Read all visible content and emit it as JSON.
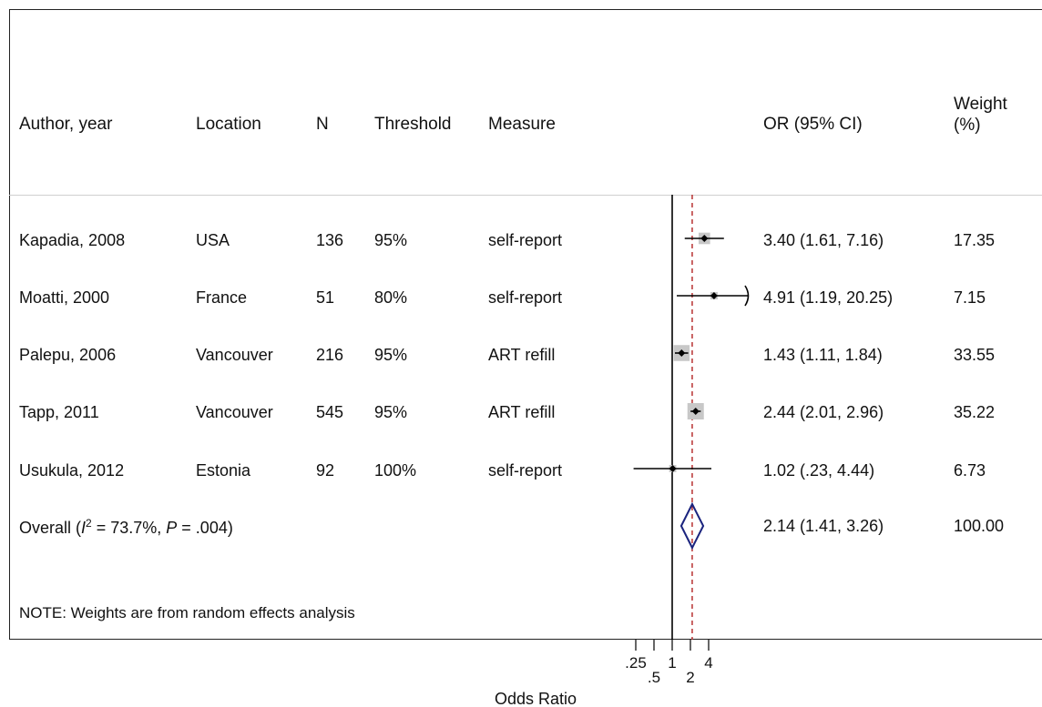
{
  "columns": {
    "author": "Author, year",
    "location": "Location",
    "n": "N",
    "threshold": "Threshold",
    "measure": "Measure",
    "or_ci": "OR (95% CI)",
    "weight_line1": "Weight",
    "weight_line2": "(%)"
  },
  "studies": [
    {
      "author": "Kapadia, 2008",
      "location": "USA",
      "n": "136",
      "threshold": "95%",
      "measure": "self-report",
      "or_ci": "3.40 (1.61, 7.16)",
      "weight": "17.35"
    },
    {
      "author": "Moatti, 2000",
      "location": "France",
      "n": "51",
      "threshold": "80%",
      "measure": "self-report",
      "or_ci": "4.91 (1.19, 20.25)",
      "weight": "7.15"
    },
    {
      "author": "Palepu, 2006",
      "location": "Vancouver",
      "n": "216",
      "threshold": "95%",
      "measure": "ART refill",
      "or_ci": "1.43 (1.11, 1.84)",
      "weight": "33.55"
    },
    {
      "author": "Tapp, 2011",
      "location": "Vancouver",
      "n": "545",
      "threshold": "95%",
      "measure": "ART refill",
      "or_ci": "2.44 (2.01, 2.96)",
      "weight": "35.22"
    },
    {
      "author": "Usukula, 2012",
      "location": "Estonia",
      "n": "92",
      "threshold": "100%",
      "measure": "self-report",
      "or_ci": "1.02 (.23, 4.44)",
      "weight": "6.73"
    }
  ],
  "overall": {
    "label_prefix": "Overall  (",
    "i_symbol": "I",
    "i_exp": "2",
    "label_mid": " = 73.7%, ",
    "p_symbol": "P",
    "label_end": " = .004)",
    "or_ci": "2.14 (1.41, 3.26)",
    "weight": "100.00"
  },
  "note": "NOTE: Weights are from random effects analysis",
  "chart_data": {
    "type": "forest",
    "xlabel": "Odds Ratio",
    "x_scale": "log",
    "x_ticks": [
      0.25,
      0.5,
      1,
      2,
      4
    ],
    "x_tick_labels": [
      ".25",
      ".5",
      "1",
      "2",
      "4"
    ],
    "null_line": 1,
    "overall_line": 2.14,
    "estimates": [
      {
        "study": "Kapadia, 2008",
        "or": 3.4,
        "lower": 1.61,
        "upper": 7.16,
        "weight": 17.35
      },
      {
        "study": "Moatti, 2000",
        "or": 4.91,
        "lower": 1.19,
        "upper": 20.25,
        "weight": 7.15
      },
      {
        "study": "Palepu, 2006",
        "or": 1.43,
        "lower": 1.11,
        "upper": 1.84,
        "weight": 33.55
      },
      {
        "study": "Tapp, 2011",
        "or": 2.44,
        "lower": 2.01,
        "upper": 2.96,
        "weight": 35.22
      },
      {
        "study": "Usukula, 2012",
        "or": 1.02,
        "lower": 0.23,
        "upper": 4.44,
        "weight": 6.73
      }
    ],
    "overall": {
      "or": 2.14,
      "lower": 1.41,
      "upper": 3.26,
      "weight": 100.0
    },
    "colors": {
      "marker_box": "#c8c8c8",
      "diamond": "#1a237e",
      "overall_line": "#b22222",
      "axis": "#000000"
    }
  }
}
